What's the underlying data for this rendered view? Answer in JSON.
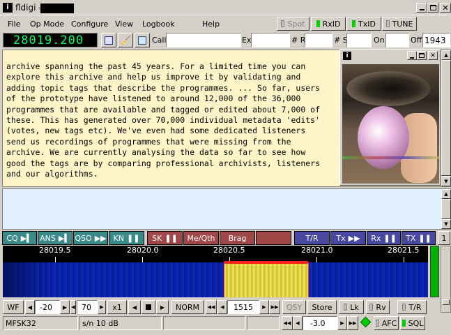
{
  "window": {
    "title": "fldigi -"
  },
  "menu": {
    "items": [
      "File",
      "Op Mode",
      "Configure",
      "View",
      "Logbook",
      "Help"
    ]
  },
  "top_toggles": {
    "spot": "Spot",
    "rxid": "RxID",
    "txid": "TxID",
    "tune": "TUNE"
  },
  "freq": {
    "value": "28019.200"
  },
  "log": {
    "call_label": "Call",
    "ex_label": "Ex",
    "r_label": "# R",
    "s_label": "# S",
    "on_label": "On",
    "off_label": "Off",
    "off_value": "1943"
  },
  "rx_text": "archive spanning the past 45 years. For a limited time you can\nexplore this archive and help us improve it by validating and\nadding topic tags that describe the programmes. ... So far, users\nof the prototype have listened to around 12,000 of the 36,000\nprogrammes that are available and tagged or edited about 7,000 of\nthese. This has generated over 70,000 individual metadata 'edits'\n(votes, new tags etc). We've even had some dedicated listeners\nsend us recordings of programmes that were missing from the\narchive. We are currently analysing the data so far to see how\ngood the tags are by comparing professional archivists, listeners\nand our algorithms.",
  "macros": [
    {
      "label": "CQ",
      "color": "#3a8a8a"
    },
    {
      "label": "ANS",
      "color": "#3a8a8a"
    },
    {
      "label": "QSO",
      "color": "#3a8a8a"
    },
    {
      "label": "KN",
      "color": "#3a8a8a"
    },
    {
      "label": "SK",
      "color": "#a04848"
    },
    {
      "label": "Me/Qth",
      "color": "#a04848"
    },
    {
      "label": "Brag",
      "color": "#a04848"
    },
    {
      "label": "",
      "color": "#a04848"
    },
    {
      "label": "T/R",
      "color": "#4848a0"
    },
    {
      "label": "Tx",
      "color": "#4848a0"
    },
    {
      "label": "Rx",
      "color": "#4848a0"
    },
    {
      "label": "TX",
      "color": "#4848a0"
    }
  ],
  "macro_page": "1",
  "scale": [
    "28019.5",
    "28020.0",
    "28020.5",
    "28021.0",
    "28021.5"
  ],
  "controls": {
    "wf": "WF",
    "floor": "-20",
    "range": "70",
    "zoom": "x1",
    "norm": "NORM",
    "carrier": "1515",
    "qsy": "QSY",
    "store": "Store",
    "lk": "Lk",
    "rv": "Rv",
    "tr": "T/R"
  },
  "status": {
    "mode": "MFSK32",
    "sn": "s/n  10 dB",
    "offset": "-3.0",
    "afc": "AFC",
    "sql": "SQL"
  },
  "colors": {
    "waterfall_bg": "#0a1ea8",
    "signal": "#e8d840",
    "freq_text": "#00ff66"
  }
}
